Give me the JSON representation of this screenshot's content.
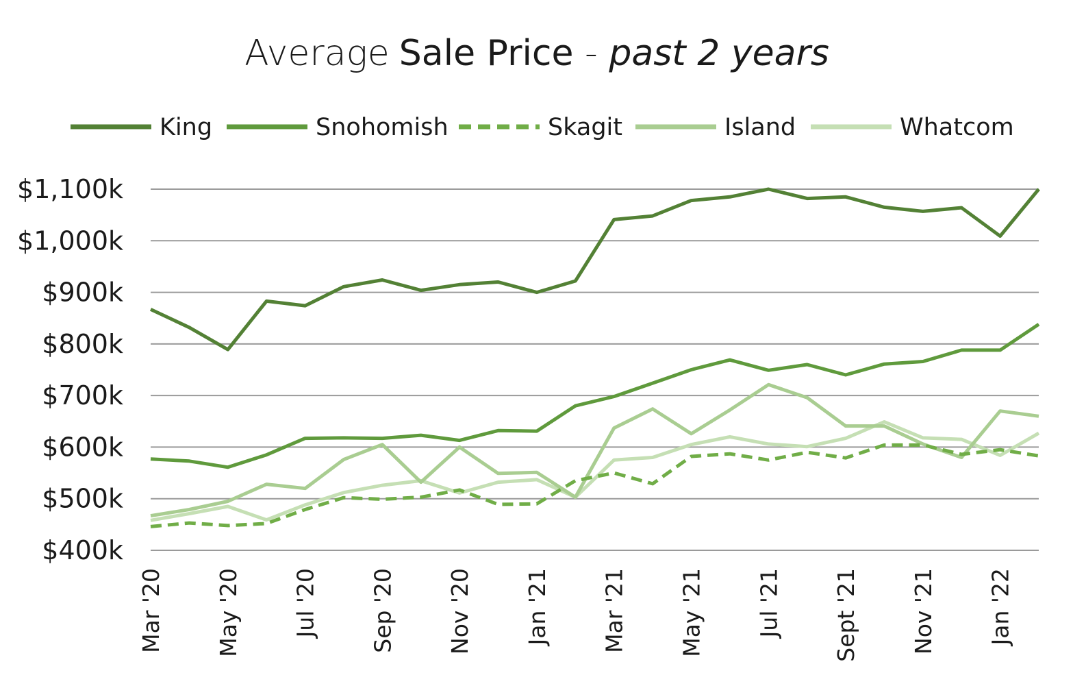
{
  "chart_data": {
    "type": "line",
    "title": {
      "part1": "Average",
      "part2": "Sale Price",
      "part3": " - ",
      "part4": "past 2 years"
    },
    "xlabel": "",
    "ylabel": "",
    "ylim": [
      400,
      1100
    ],
    "grid": true,
    "legend_position": "top",
    "y_ticks": [
      {
        "value": 1100,
        "label": "$1,100k"
      },
      {
        "value": 1000,
        "label": "$1,000k"
      },
      {
        "value": 900,
        "label": "$900k"
      },
      {
        "value": 800,
        "label": "$800k"
      },
      {
        "value": 700,
        "label": "$700k"
      },
      {
        "value": 600,
        "label": "$600k"
      },
      {
        "value": 500,
        "label": "$500k"
      },
      {
        "value": 400,
        "label": "$400k"
      }
    ],
    "x": [
      "Mar '20",
      "Apr '20",
      "May '20",
      "Jun '20",
      "Jul '20",
      "Aug '20",
      "Sep '20",
      "Oct '20",
      "Nov '20",
      "Dec '20",
      "Jan '21",
      "Feb '21",
      "Mar '21",
      "Apr '21",
      "May '21",
      "Jun '21",
      "Jul '21",
      "Aug '21",
      "Sept '21",
      "Oct '21",
      "Nov '21",
      "Dec '21",
      "Jan '22",
      "Feb '22"
    ],
    "x_tick_labels": [
      {
        "index": 0,
        "label": "Mar '20"
      },
      {
        "index": 2,
        "label": "May '20"
      },
      {
        "index": 4,
        "label": "Jul '20"
      },
      {
        "index": 6,
        "label": "Sep '20"
      },
      {
        "index": 8,
        "label": "Nov '20"
      },
      {
        "index": 10,
        "label": "Jan '21"
      },
      {
        "index": 12,
        "label": "Mar '21"
      },
      {
        "index": 14,
        "label": "May '21"
      },
      {
        "index": 16,
        "label": "Jul '21"
      },
      {
        "index": 18,
        "label": "Sept '21"
      },
      {
        "index": 20,
        "label": "Nov '21"
      },
      {
        "index": 22,
        "label": "Jan '22"
      }
    ],
    "series": [
      {
        "name": "King",
        "color": "#538135",
        "dashed": false,
        "values": [
          867,
          832,
          789,
          883,
          874,
          911,
          924,
          904,
          915,
          920,
          900,
          922,
          1041,
          1048,
          1078,
          1085,
          1100,
          1082,
          1085,
          1065,
          1057,
          1064,
          1009,
          1100
        ]
      },
      {
        "name": "Snohomish",
        "color": "#5f9a3c",
        "dashed": false,
        "values": [
          577,
          573,
          561,
          585,
          617,
          618,
          617,
          623,
          613,
          632,
          631,
          680,
          698,
          724,
          750,
          769,
          749,
          760,
          740,
          761,
          766,
          788,
          788,
          838
        ]
      },
      {
        "name": "Skagit",
        "color": "#70ad47",
        "dashed": true,
        "values": [
          446,
          453,
          448,
          452,
          479,
          502,
          499,
          503,
          517,
          489,
          490,
          535,
          550,
          529,
          582,
          587,
          575,
          590,
          579,
          604,
          604,
          586,
          595,
          583
        ]
      },
      {
        "name": "Island",
        "color": "#a9cd91",
        "dashed": false,
        "values": [
          467,
          479,
          495,
          528,
          520,
          576,
          605,
          532,
          600,
          549,
          551,
          503,
          637,
          674,
          626,
          672,
          721,
          696,
          641,
          641,
          606,
          580,
          670,
          660
        ]
      },
      {
        "name": "Whatcom",
        "color": "#c5dfb4",
        "dashed": false,
        "values": [
          458,
          471,
          485,
          459,
          488,
          512,
          526,
          535,
          511,
          532,
          537,
          503,
          575,
          580,
          605,
          620,
          606,
          601,
          617,
          649,
          618,
          615,
          584,
          627
        ]
      }
    ]
  }
}
